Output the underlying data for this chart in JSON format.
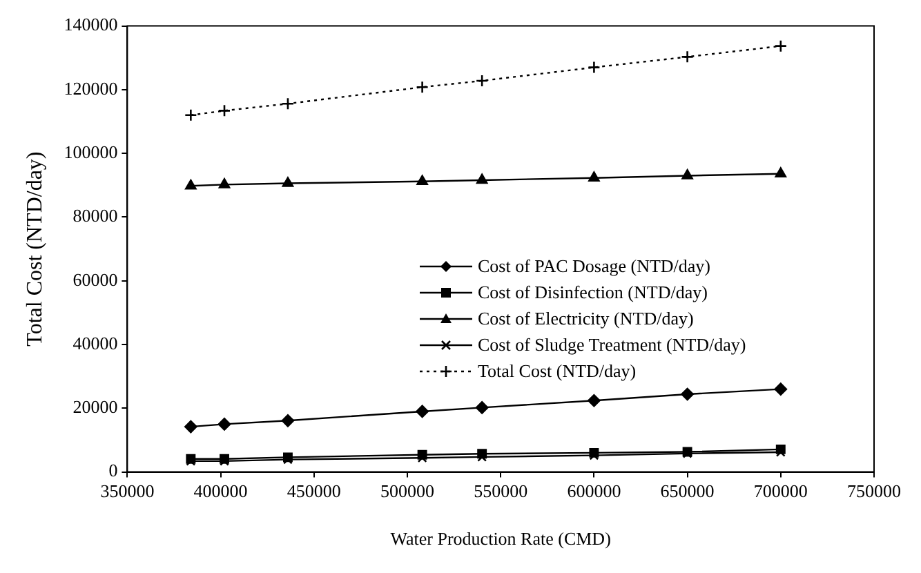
{
  "chart_data": {
    "type": "line",
    "xlabel": "Water Production Rate (CMD)",
    "ylabel": "Total Cost (NTD/day)",
    "x": [
      384000,
      402000,
      436000,
      508000,
      540000,
      600000,
      650000,
      700000
    ],
    "series": [
      {
        "name": "Cost of PAC Dosage (NTD/day)",
        "color": "#000000",
        "marker": "diamond",
        "line_style": "solid",
        "values": [
          14200,
          15000,
          16100,
          19000,
          20200,
          22400,
          24400,
          26000
        ]
      },
      {
        "name": "Cost of Disinfection (NTD/day)",
        "color": "#000000",
        "marker": "square",
        "line_style": "solid",
        "values": [
          4100,
          4100,
          4600,
          5400,
          5700,
          6000,
          6300,
          7100
        ]
      },
      {
        "name": "Cost of Electricity (NTD/day)",
        "color": "#000000",
        "marker": "triangle",
        "line_style": "solid",
        "values": [
          89800,
          90200,
          90600,
          91200,
          91600,
          92300,
          93000,
          93600
        ]
      },
      {
        "name": "Cost of Sludge Treatment (NTD/day)",
        "color": "#000000",
        "marker": "cross",
        "line_style": "solid",
        "values": [
          3400,
          3400,
          3900,
          4400,
          4700,
          5200,
          5800,
          6200
        ]
      },
      {
        "name": "Total Cost (NTD/day)",
        "color": "#000000",
        "marker": "plus",
        "line_style": "dotted",
        "values": [
          112000,
          113400,
          115600,
          120800,
          122800,
          127000,
          130300,
          133700
        ]
      }
    ],
    "xlim": [
      350000,
      750000
    ],
    "xticks": [
      350000,
      400000,
      450000,
      500000,
      550000,
      600000,
      650000,
      700000,
      750000
    ],
    "ylim": [
      0,
      140000
    ],
    "yticks": [
      0,
      20000,
      40000,
      60000,
      80000,
      100000,
      120000,
      140000
    ],
    "grid": false,
    "legend": "right"
  }
}
